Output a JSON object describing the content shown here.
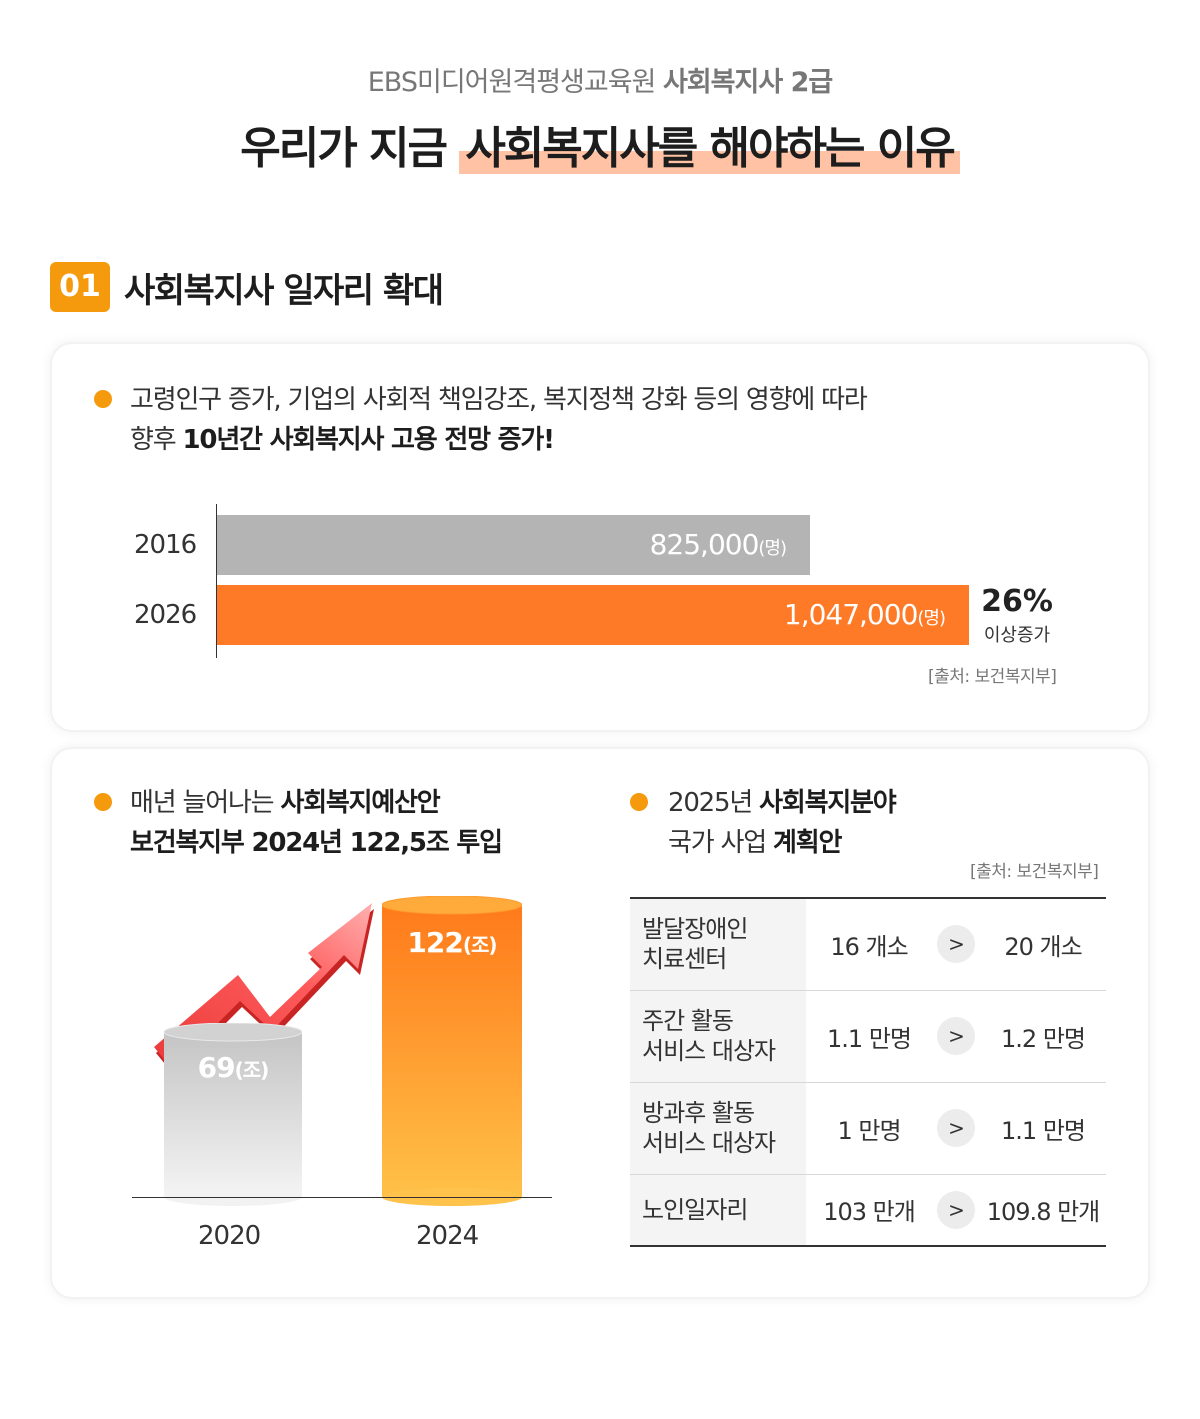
{
  "header": {
    "subtitle_prefix": "EBS미디어원격평생교육원",
    "subtitle_bold": "사회복지사 2급",
    "title_prefix": "우리가 지금",
    "title_highlight": "사회복지사를 해야하는 이유"
  },
  "section": {
    "number": "01",
    "title": "사회복지사 일자리 확대"
  },
  "card1": {
    "line1": "고령인구 증가, 기업의 사회적 책임강조, 복지정책 강화 등의 영향에 따라",
    "line2_prefix": "향후",
    "line2_bold": "10년간 사회복지사 고용 전망 증가!",
    "source": "[출처: 보건복지부]",
    "growth_pct": "26%",
    "growth_label": "이상증가"
  },
  "chart_data": [
    {
      "type": "bar",
      "orientation": "horizontal",
      "categories": [
        "2016",
        "2026"
      ],
      "values": [
        825000,
        1047000
      ],
      "value_labels": [
        "825,000",
        "1,047,000"
      ],
      "unit_label": "(명)",
      "colors": [
        "#b4b4b4",
        "#ff7a27"
      ]
    },
    {
      "type": "bar",
      "categories": [
        "2020",
        "2024"
      ],
      "values": [
        69,
        122
      ],
      "value_labels": [
        "69",
        "122"
      ],
      "unit_label": "(조)"
    }
  ],
  "card2": {
    "left_line1_prefix": "매년 늘어나는",
    "left_line1_bold": "사회복지예산안",
    "left_line2_bold": "보건복지부 2024년 122,5조 투입",
    "right_line1_prefix": "2025년",
    "right_line1_bold": "사회복지분야",
    "right_line2_prefix": "국가 사업",
    "right_line2_bold": "계획안",
    "source": "[출처: 보건복지부]",
    "arrow_glyph": ">",
    "rows": [
      {
        "label_1": "발달장애인",
        "label_2": "치료센터",
        "from": "16 개소",
        "to": "20 개소"
      },
      {
        "label_1": "주간 활동",
        "label_2": "서비스 대상자",
        "from": "1.1 만명",
        "to": "1.2 만명"
      },
      {
        "label_1": "방과후 활동",
        "label_2": "서비스 대상자",
        "from": "1 만명",
        "to": "1.1 만명"
      },
      {
        "label_1": "노인일자리",
        "label_2": "",
        "from": "103 만개",
        "to": "109.8 만개"
      }
    ]
  },
  "colors": {
    "accent": "#f59a0c",
    "bar_gray": "#b4b4b4",
    "bar_orange": "#ff7a27",
    "highlight": "#ffc2a4"
  },
  "icons": {
    "trend_arrow": "upward-trend-arrow-icon"
  }
}
